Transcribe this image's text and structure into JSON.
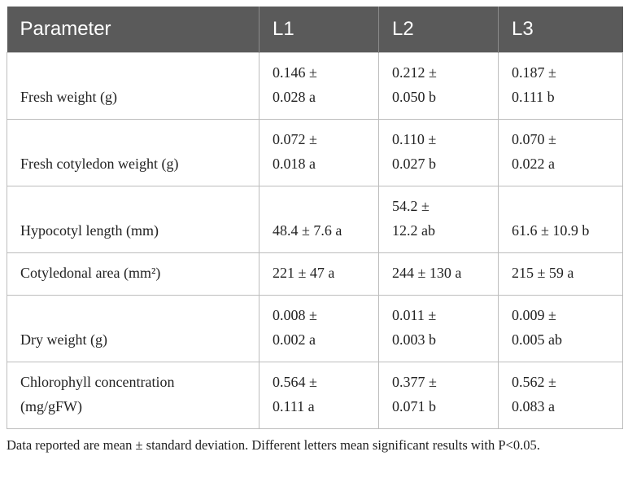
{
  "table": {
    "header": [
      "Parameter",
      "L1",
      "L2",
      "L3"
    ],
    "rows": [
      [
        [
          "Fresh weight (g)"
        ],
        [
          "0.146 ±",
          "0.028 a"
        ],
        [
          "0.212 ±",
          "0.050 b"
        ],
        [
          "0.187 ±",
          "0.111 b"
        ]
      ],
      [
        [
          "Fresh cotyledon weight (g)"
        ],
        [
          "0.072 ±",
          "0.018 a"
        ],
        [
          "0.110 ±",
          "0.027 b"
        ],
        [
          "0.070 ±",
          "0.022 a"
        ]
      ],
      [
        [
          "Hypocotyl length (mm)"
        ],
        [
          "48.4 ± 7.6 a"
        ],
        [
          "54.2 ±",
          "12.2 ab"
        ],
        [
          "61.6 ± 10.9 b"
        ]
      ],
      [
        [
          "Cotyledonal area (mm²)"
        ],
        [
          "221 ± 47 a"
        ],
        [
          "244 ± 130 a"
        ],
        [
          "215 ± 59 a"
        ]
      ],
      [
        [
          "Dry weight (g)"
        ],
        [
          "0.008 ±",
          "0.002 a"
        ],
        [
          "0.011 ±",
          "0.003 b"
        ],
        [
          "0.009 ±",
          "0.005 ab"
        ]
      ],
      [
        [
          "Chlorophyll concentration",
          "(mg/gFW)"
        ],
        [
          "0.564 ±",
          "0.111 a"
        ],
        [
          "0.377 ±",
          "0.071 b"
        ],
        [
          "0.562 ±",
          "0.083 a"
        ]
      ]
    ]
  },
  "footnote": "Data reported are mean ± standard deviation. Different letters mean significant results with P<0.05."
}
